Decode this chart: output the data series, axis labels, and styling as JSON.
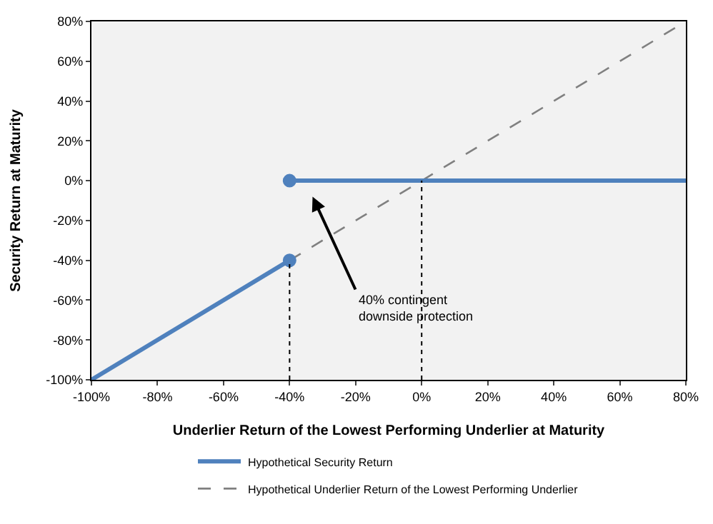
{
  "chart_data": {
    "type": "line",
    "xlabel": "Underlier Return of the Lowest Performing Underlier at Maturity",
    "ylabel": "Security Return at Maturity",
    "series": [
      {
        "name": "Hypothetical Security Return",
        "color": "#4f81bd",
        "x": [
          -100,
          -40
        ],
        "values": [
          -100,
          -40
        ],
        "line_style": "solid"
      },
      {
        "color": "#4f81bd",
        "x": [
          -40,
          80
        ],
        "values": [
          0,
          0
        ],
        "line_style": "solid"
      },
      {
        "name": "Hypothetical Underlier Return of the Lowest Performing Underlier",
        "color": "#808080",
        "x": [
          -100,
          80
        ],
        "values": [
          -100,
          80
        ],
        "line_style": "dashed"
      },
      {
        "type": "scatter",
        "color": "#4f81bd",
        "x": [
          -40
        ],
        "values": [
          0
        ],
        "marker": "circle"
      },
      {
        "type": "scatter",
        "color": "#4f81bd",
        "x": [
          -40
        ],
        "values": [
          -40
        ],
        "marker": "circle"
      }
    ],
    "xlim": [
      -100,
      80
    ],
    "ylim": [
      -100,
      80
    ],
    "xticks": [
      {
        "value": -100,
        "label": "-100%"
      },
      {
        "value": -80,
        "label": "-80%"
      },
      {
        "value": -60,
        "label": "-60%"
      },
      {
        "value": -40,
        "label": "-40%"
      },
      {
        "value": -20,
        "label": "-20%"
      },
      {
        "value": 0,
        "label": "0%"
      },
      {
        "value": 20,
        "label": "20%"
      },
      {
        "value": 40,
        "label": "40%"
      },
      {
        "value": 60,
        "label": "60%"
      },
      {
        "value": 80,
        "label": "80%"
      }
    ],
    "yticks": [
      {
        "value": -100,
        "label": "-100%"
      },
      {
        "value": -80,
        "label": "-80%"
      },
      {
        "value": -60,
        "label": "-60%"
      },
      {
        "value": -40,
        "label": "-40%"
      },
      {
        "value": -20,
        "label": "-20%"
      },
      {
        "value": 0,
        "label": "0%"
      },
      {
        "value": 20,
        "label": "20%"
      },
      {
        "value": 40,
        "label": "40%"
      },
      {
        "value": 60,
        "label": "60%"
      },
      {
        "value": 80,
        "label": "80%"
      }
    ],
    "ref_lines": [
      {
        "axis": "x",
        "value": -40,
        "color": "#000000",
        "line_style": "dotted"
      },
      {
        "axis": "x",
        "value": 0,
        "color": "#000000",
        "line_style": "dotted"
      }
    ],
    "annotations": [
      "40% contingent\ndownside protection"
    ],
    "grid": false,
    "legend": "bottom"
  }
}
